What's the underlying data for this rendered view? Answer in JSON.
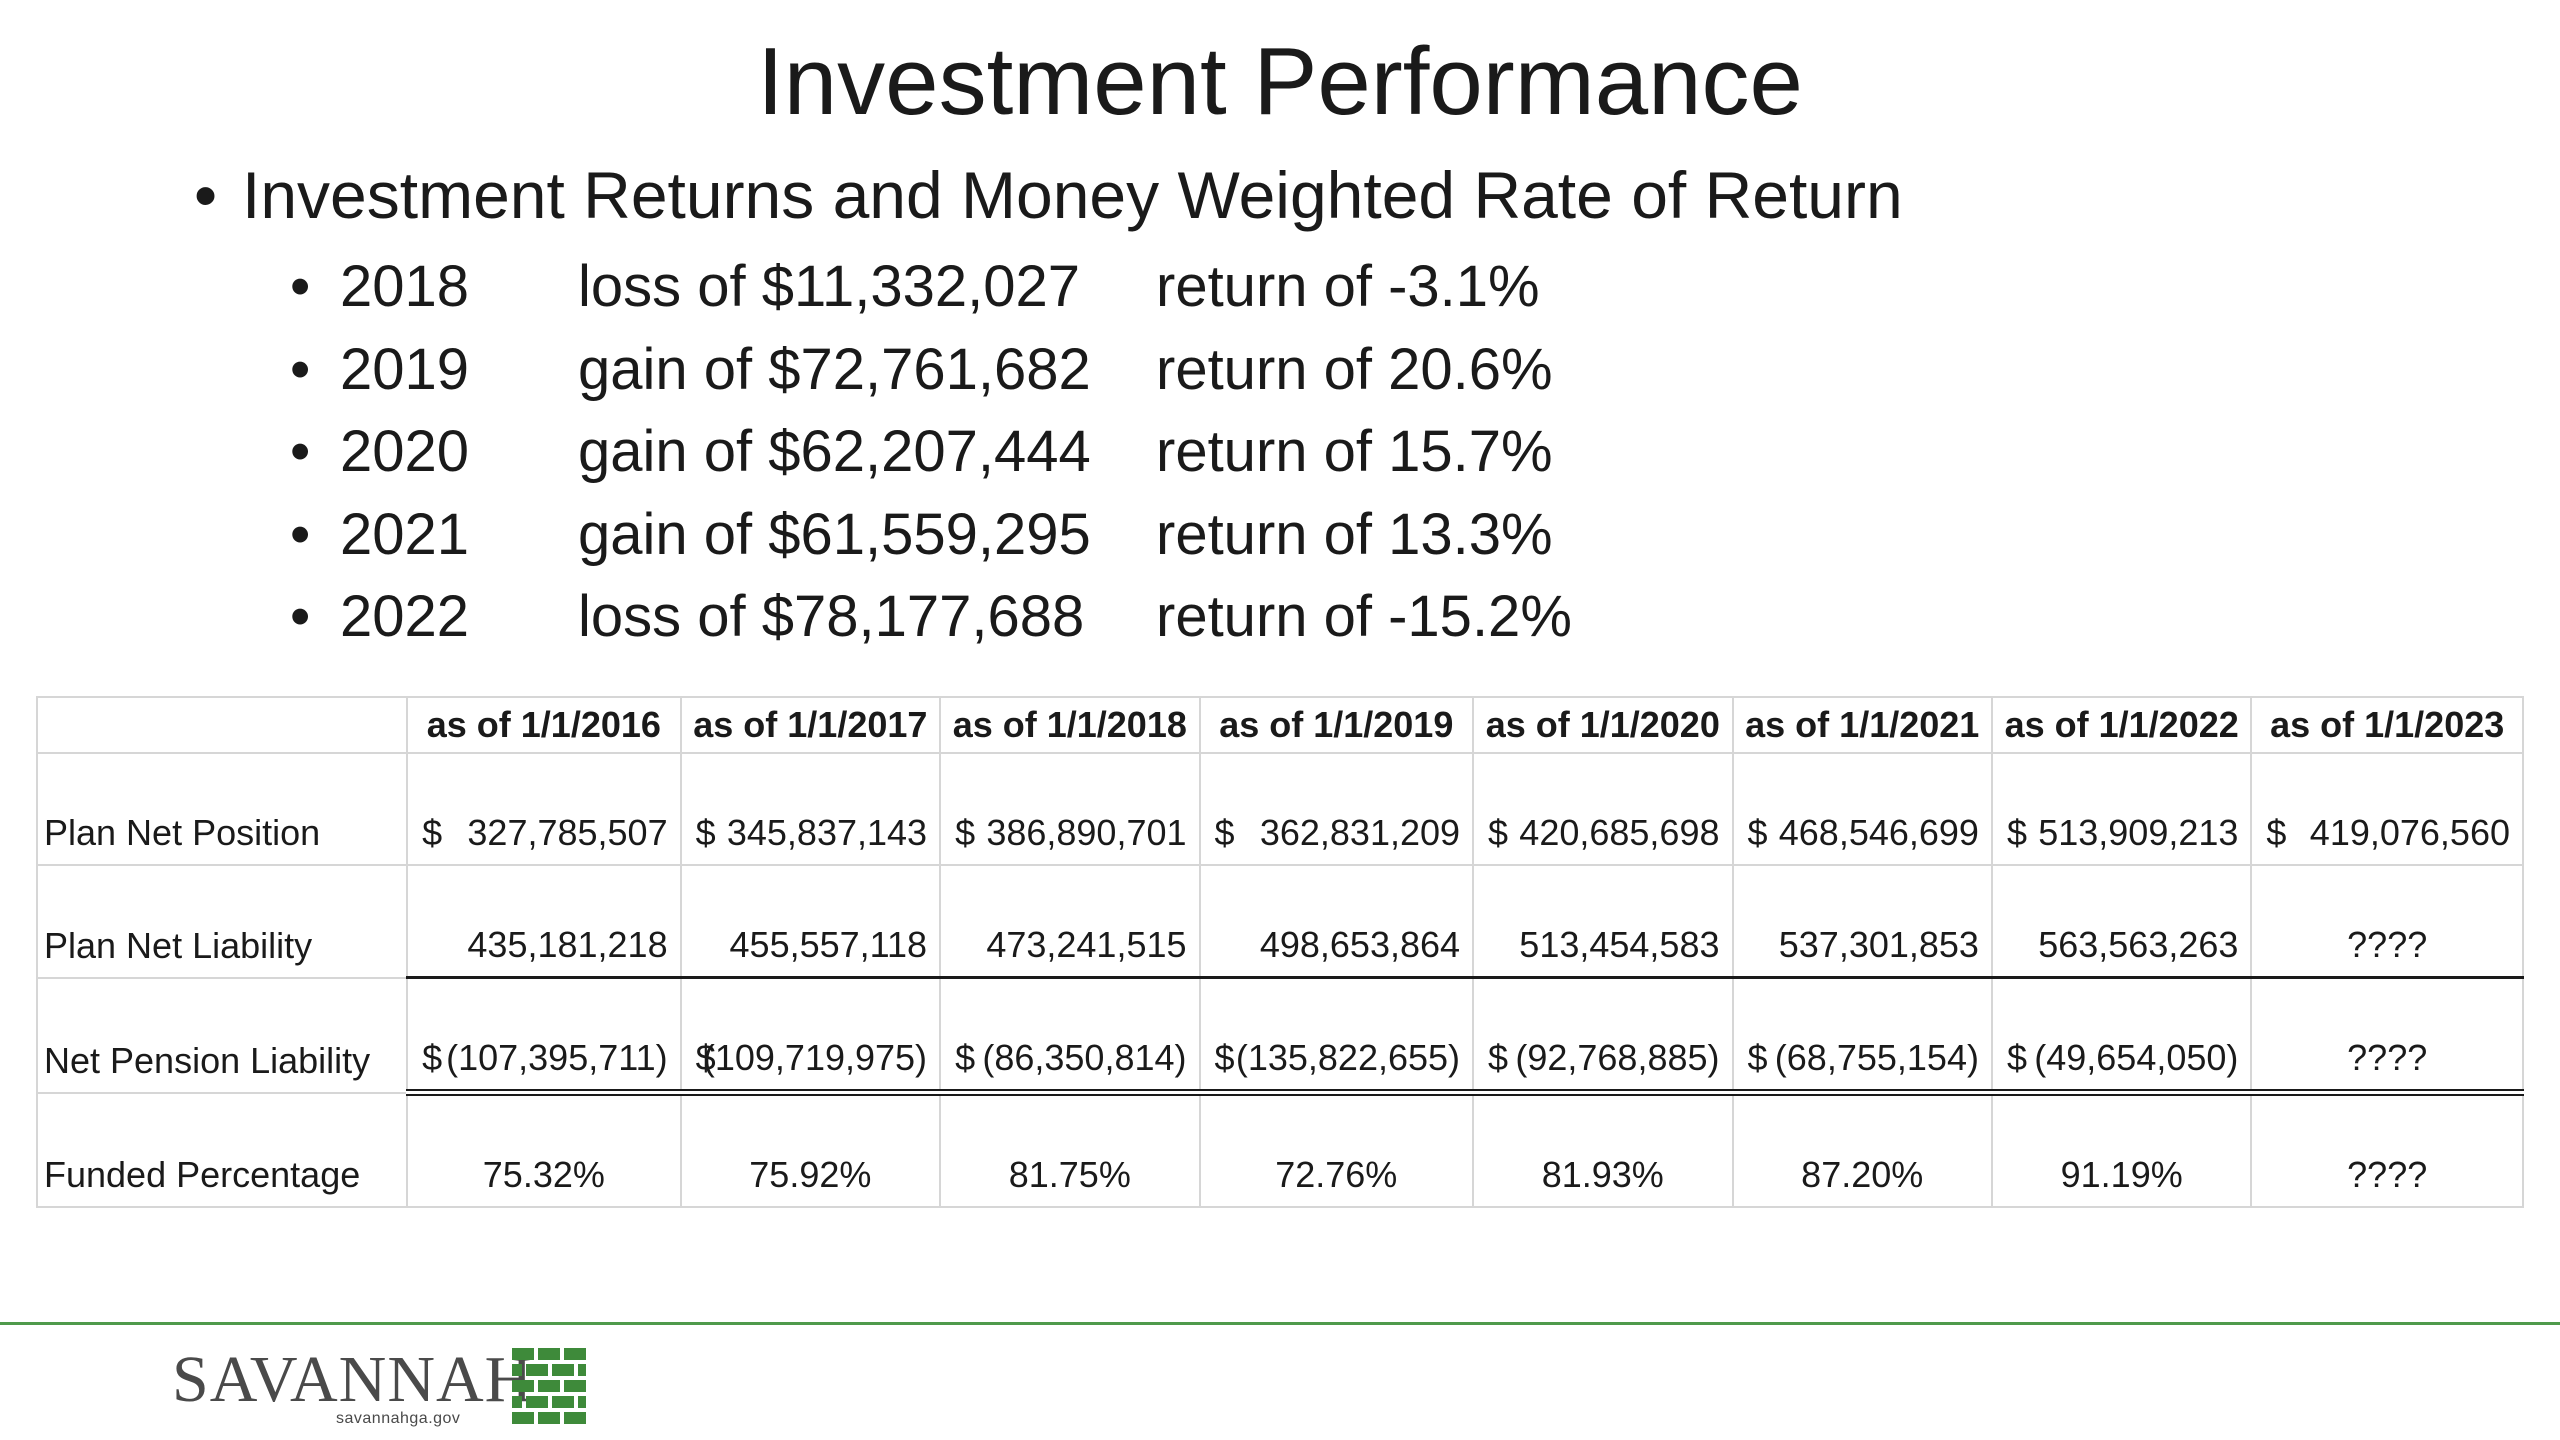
{
  "slide": {
    "title": "Investment Performance"
  },
  "bullets": {
    "main": "Investment Returns and Money Weighted Rate of Return",
    "items": [
      {
        "year": "2018",
        "amount": "loss of $11,332,027",
        "return": "return of -3.1%"
      },
      {
        "year": "2019",
        "amount": "gain of $72,761,682",
        "return": "return of  20.6%"
      },
      {
        "year": "2020",
        "amount": "gain of $62,207,444",
        "return": "return of  15.7%"
      },
      {
        "year": "2021",
        "amount": "gain of $61,559,295",
        "return": "return of  13.3%"
      },
      {
        "year": "2022",
        "amount": "loss of  $78,177,688",
        "return": "return of -15.2%"
      }
    ]
  },
  "table": {
    "headers": [
      "",
      "as of 1/1/2016",
      "as of 1/1/2017",
      "as of 1/1/2018",
      "as of 1/1/2019",
      "as of 1/1/2020",
      "as of 1/1/2021",
      "as of 1/1/2022",
      "as of 1/1/2023"
    ],
    "rows": [
      {
        "label": "Plan Net Position",
        "currency_sign": "$",
        "values": [
          "327,785,507",
          "345,837,143",
          "386,890,701",
          "362,831,209",
          "420,685,698",
          "468,546,699",
          "513,909,213",
          "419,076,560"
        ]
      },
      {
        "label": "Plan Net Liability",
        "values": [
          "435,181,218",
          "455,557,118",
          "473,241,515",
          "498,653,864",
          "513,454,583",
          "537,301,853",
          "563,563,263",
          "????"
        ]
      },
      {
        "label": "Net Pension Liability",
        "currency_sign": "$",
        "values": [
          "(107,395,711)",
          "(109,719,975)",
          "(86,350,814)",
          "(135,822,655)",
          "(92,768,885)",
          "(68,755,154)",
          "(49,654,050)",
          "????"
        ]
      },
      {
        "label": "Funded Percentage",
        "values": [
          "75.32%",
          "75.92%",
          "81.75%",
          "72.76%",
          "81.93%",
          "87.20%",
          "91.19%",
          "????"
        ]
      }
    ]
  },
  "footer": {
    "logo_wordmark": "SAVANNAH",
    "logo_domain": "savannahga.gov",
    "rule_color": "#4f9a4b",
    "logo_mark_color": "#3e8a3a"
  }
}
